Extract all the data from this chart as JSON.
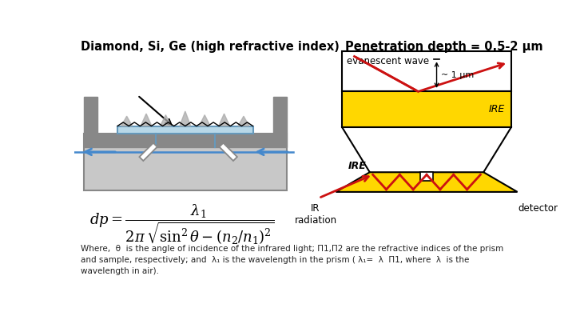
{
  "title_left": "Diamond, Si, Ge (high refractive index)",
  "title_right": "Penetration depth = 0.5-2 μm",
  "label_evanescent": "evanescent wave",
  "label_1um": "~ 1 μm",
  "label_IRE_right": "IRE",
  "label_IRE_bottom": "IRE",
  "label_IR": "IR\nradiation",
  "label_detector": "detector",
  "footnote_line1": "Where,  θ  is the angle of incidence of the infrared light; Π1,Π2 are the refractive indices of the prism",
  "footnote_line2": "and sample, respectively; and  λ₁ is the wavelength in the prism ( λ₁=  λ  Π1, where  λ  is the",
  "footnote_line3": "wavelength in air).",
  "bg_color": "#ffffff",
  "gray_body": "#c8c8c8",
  "gray_dark": "#888888",
  "gray_slot": "#999999",
  "crystal_blue": "#b8d8e8",
  "crystal_edge": "#6699bb",
  "gold_color": "#FFD700",
  "blue_beam": "#4488cc",
  "red_beam": "#cc1111",
  "black": "#000000",
  "spike_color": "#aaaaaa"
}
